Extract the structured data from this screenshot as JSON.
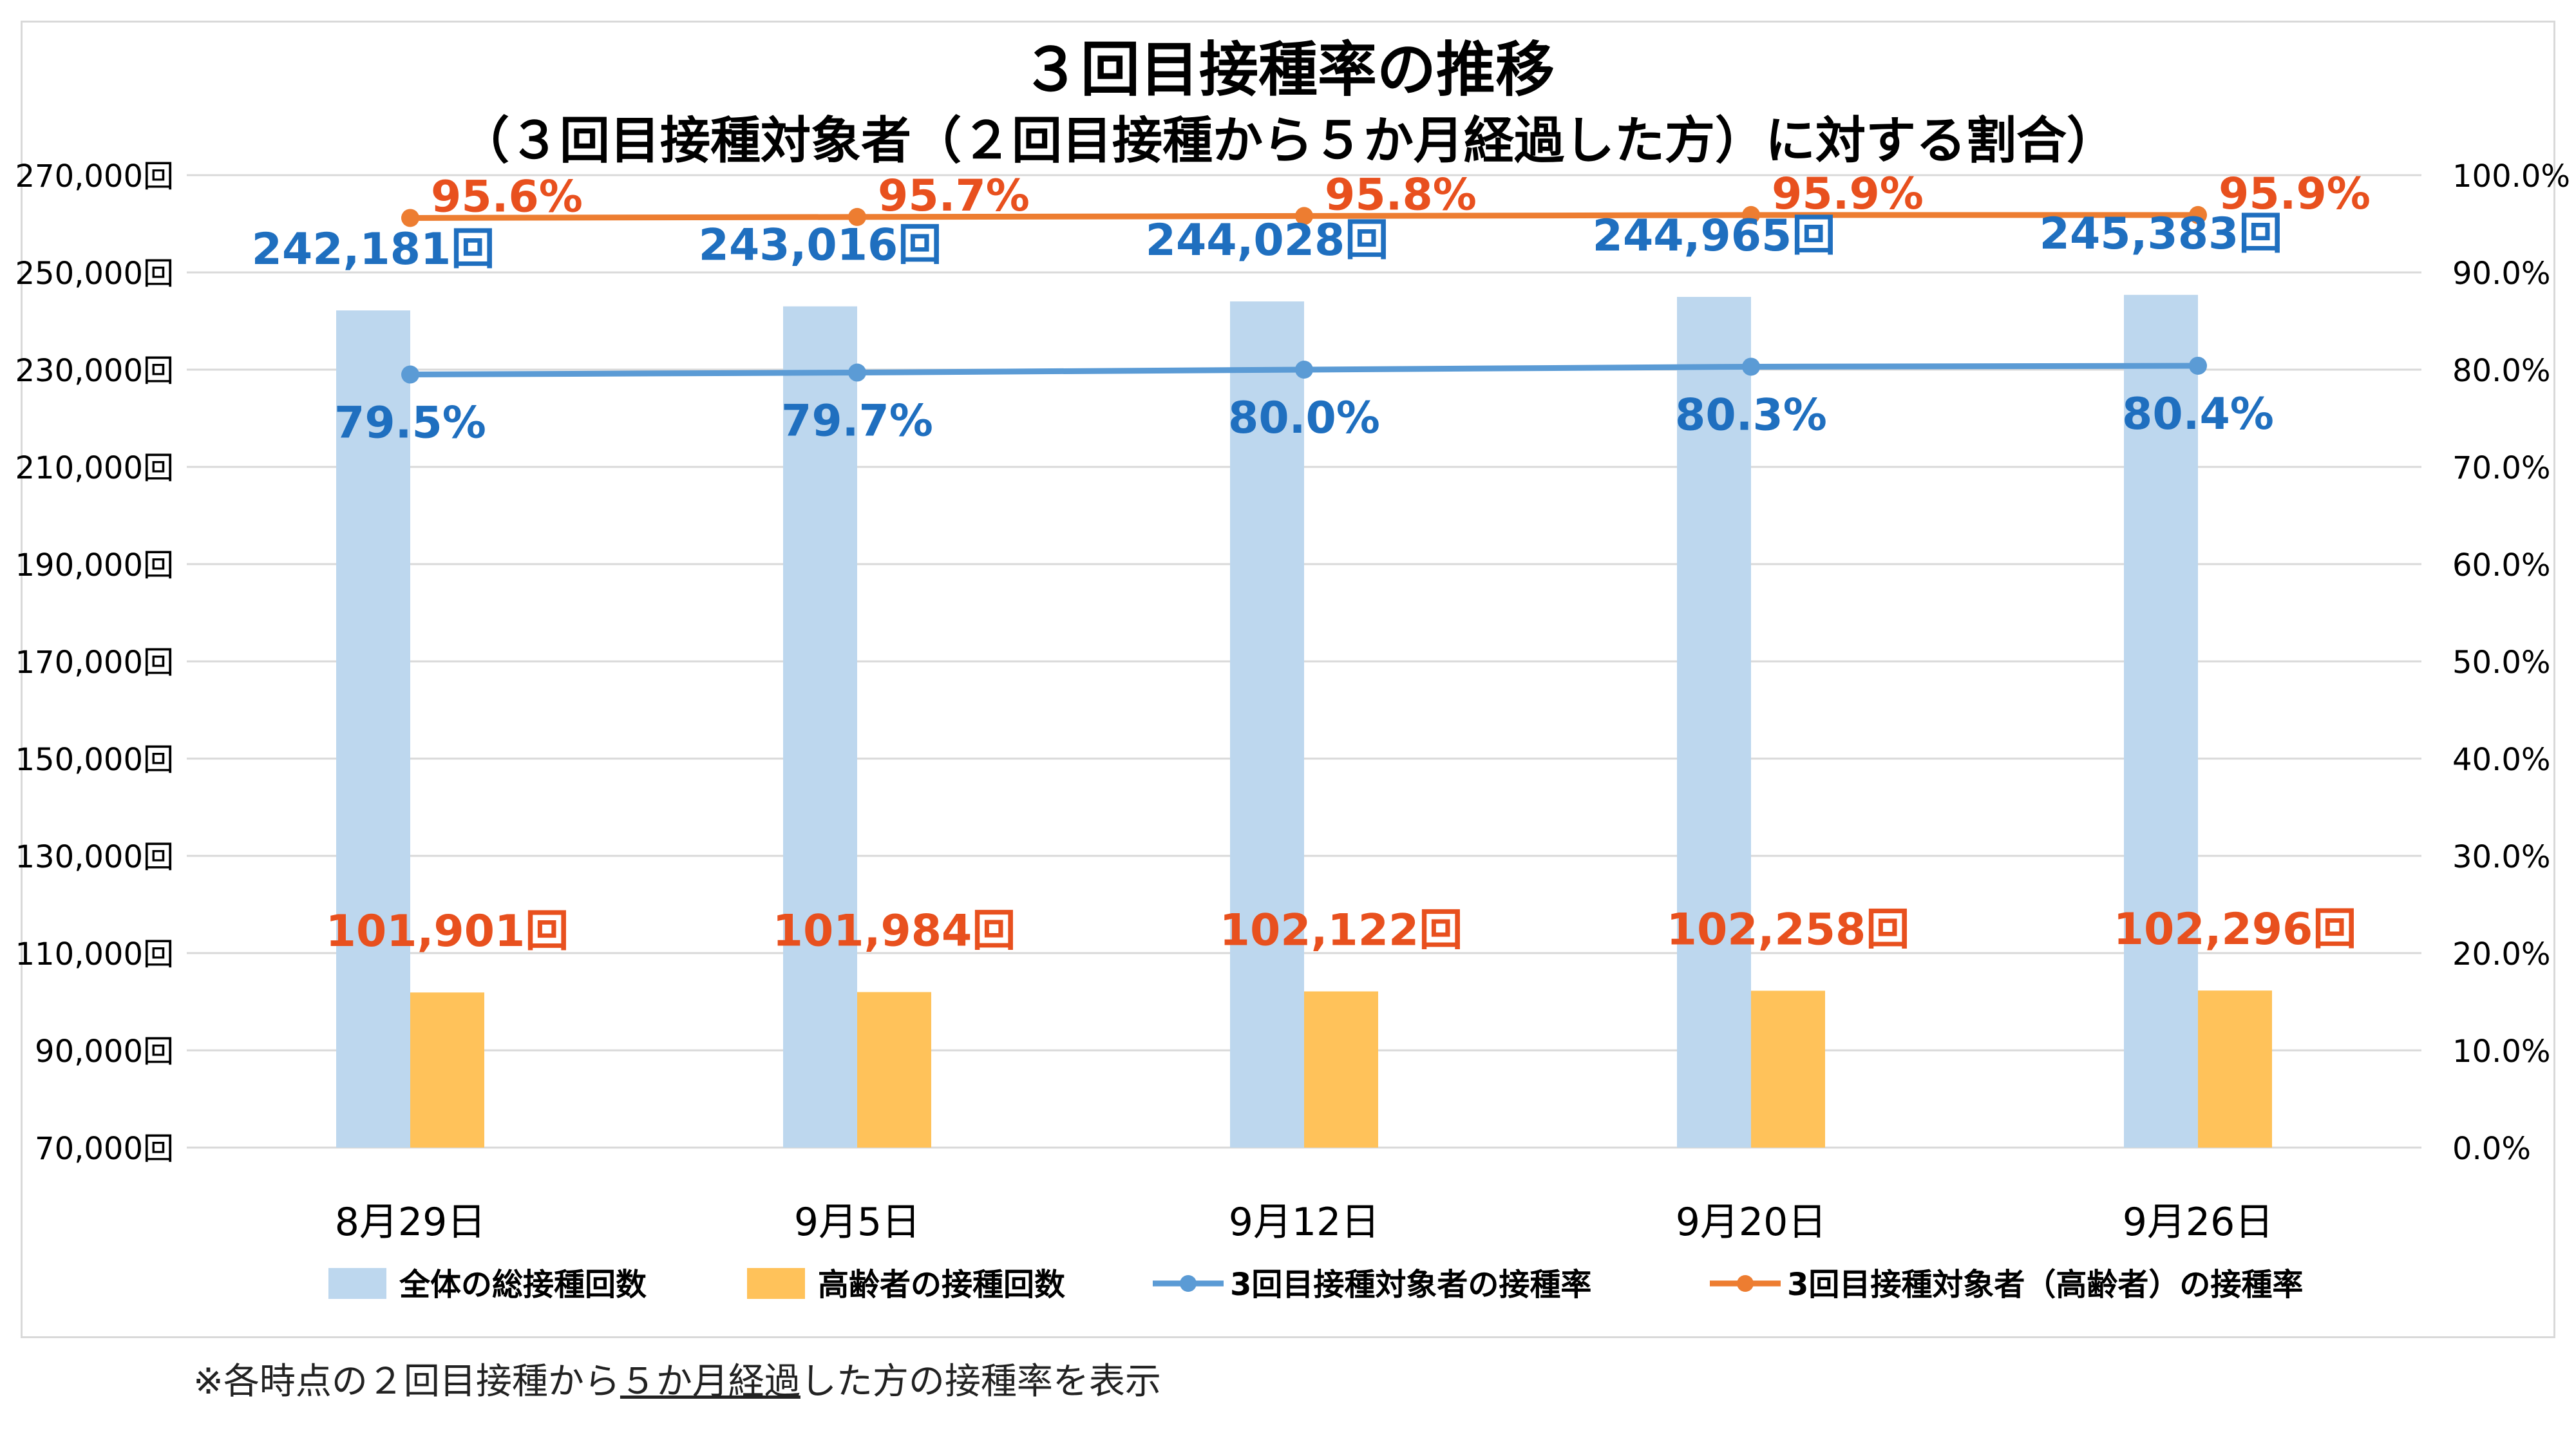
{
  "chart_data": {
    "type": "bar",
    "title": "３回目接種率の推移",
    "subtitle": "（３回目接種対象者（２回目接種から５か月経過した方）に対する割合）",
    "categories": [
      "8月29日",
      "9月5日",
      "9月12日",
      "9月20日",
      "9月26日"
    ],
    "ylim_left": [
      70000,
      270000
    ],
    "ylim_right": [
      0,
      100
    ],
    "y_left_ticks": [
      "70,000回",
      "90,000回",
      "110,000回",
      "130,000回",
      "150,000回",
      "170,000回",
      "190,000回",
      "210,000回",
      "230,000回",
      "250,000回",
      "270,000回"
    ],
    "y_right_ticks": [
      "0.0%",
      "10.0%",
      "20.0%",
      "30.0%",
      "40.0%",
      "50.0%",
      "60.0%",
      "70.0%",
      "80.0%",
      "90.0%",
      "100.0%"
    ],
    "grid": true,
    "legend_position": "bottom",
    "series": [
      {
        "name": "全体の総接種回数",
        "type": "bar",
        "axis": "left",
        "color": "#bdd7ee",
        "label_color": "#1f6fbf",
        "values": [
          242181,
          243016,
          244028,
          244965,
          245383
        ],
        "labels": [
          "242,181回",
          "243,016回",
          "244,028回",
          "244,965回",
          "245,383回"
        ]
      },
      {
        "name": "高齢者の接種回数",
        "type": "bar",
        "axis": "left",
        "color": "#ffc25a",
        "label_color": "#e8501e",
        "values": [
          101901,
          101984,
          102122,
          102258,
          102296
        ],
        "labels": [
          "101,901回",
          "101,984回",
          "102,122回",
          "102,258回",
          "102,296回"
        ]
      },
      {
        "name": "3回目接種対象者の接種率",
        "type": "line",
        "axis": "right",
        "color": "#5b9bd5",
        "label_color": "#1f6fbf",
        "values": [
          79.5,
          79.7,
          80.0,
          80.3,
          80.4
        ],
        "labels": [
          "79.5%",
          "79.7%",
          "80.0%",
          "80.3%",
          "80.4%"
        ]
      },
      {
        "name": "3回目接種対象者（高齢者）の接種率",
        "type": "line",
        "axis": "right",
        "color": "#ed7d31",
        "label_color": "#e8501e",
        "values": [
          95.6,
          95.7,
          95.8,
          95.9,
          95.9
        ],
        "labels": [
          "95.6%",
          "95.7%",
          "95.8%",
          "95.9%",
          "95.9%"
        ]
      }
    ]
  },
  "footnote": {
    "prefix": "※各時点の２回目接種から",
    "underlined": "５か月経過",
    "suffix": "した方の接種率を表示"
  }
}
